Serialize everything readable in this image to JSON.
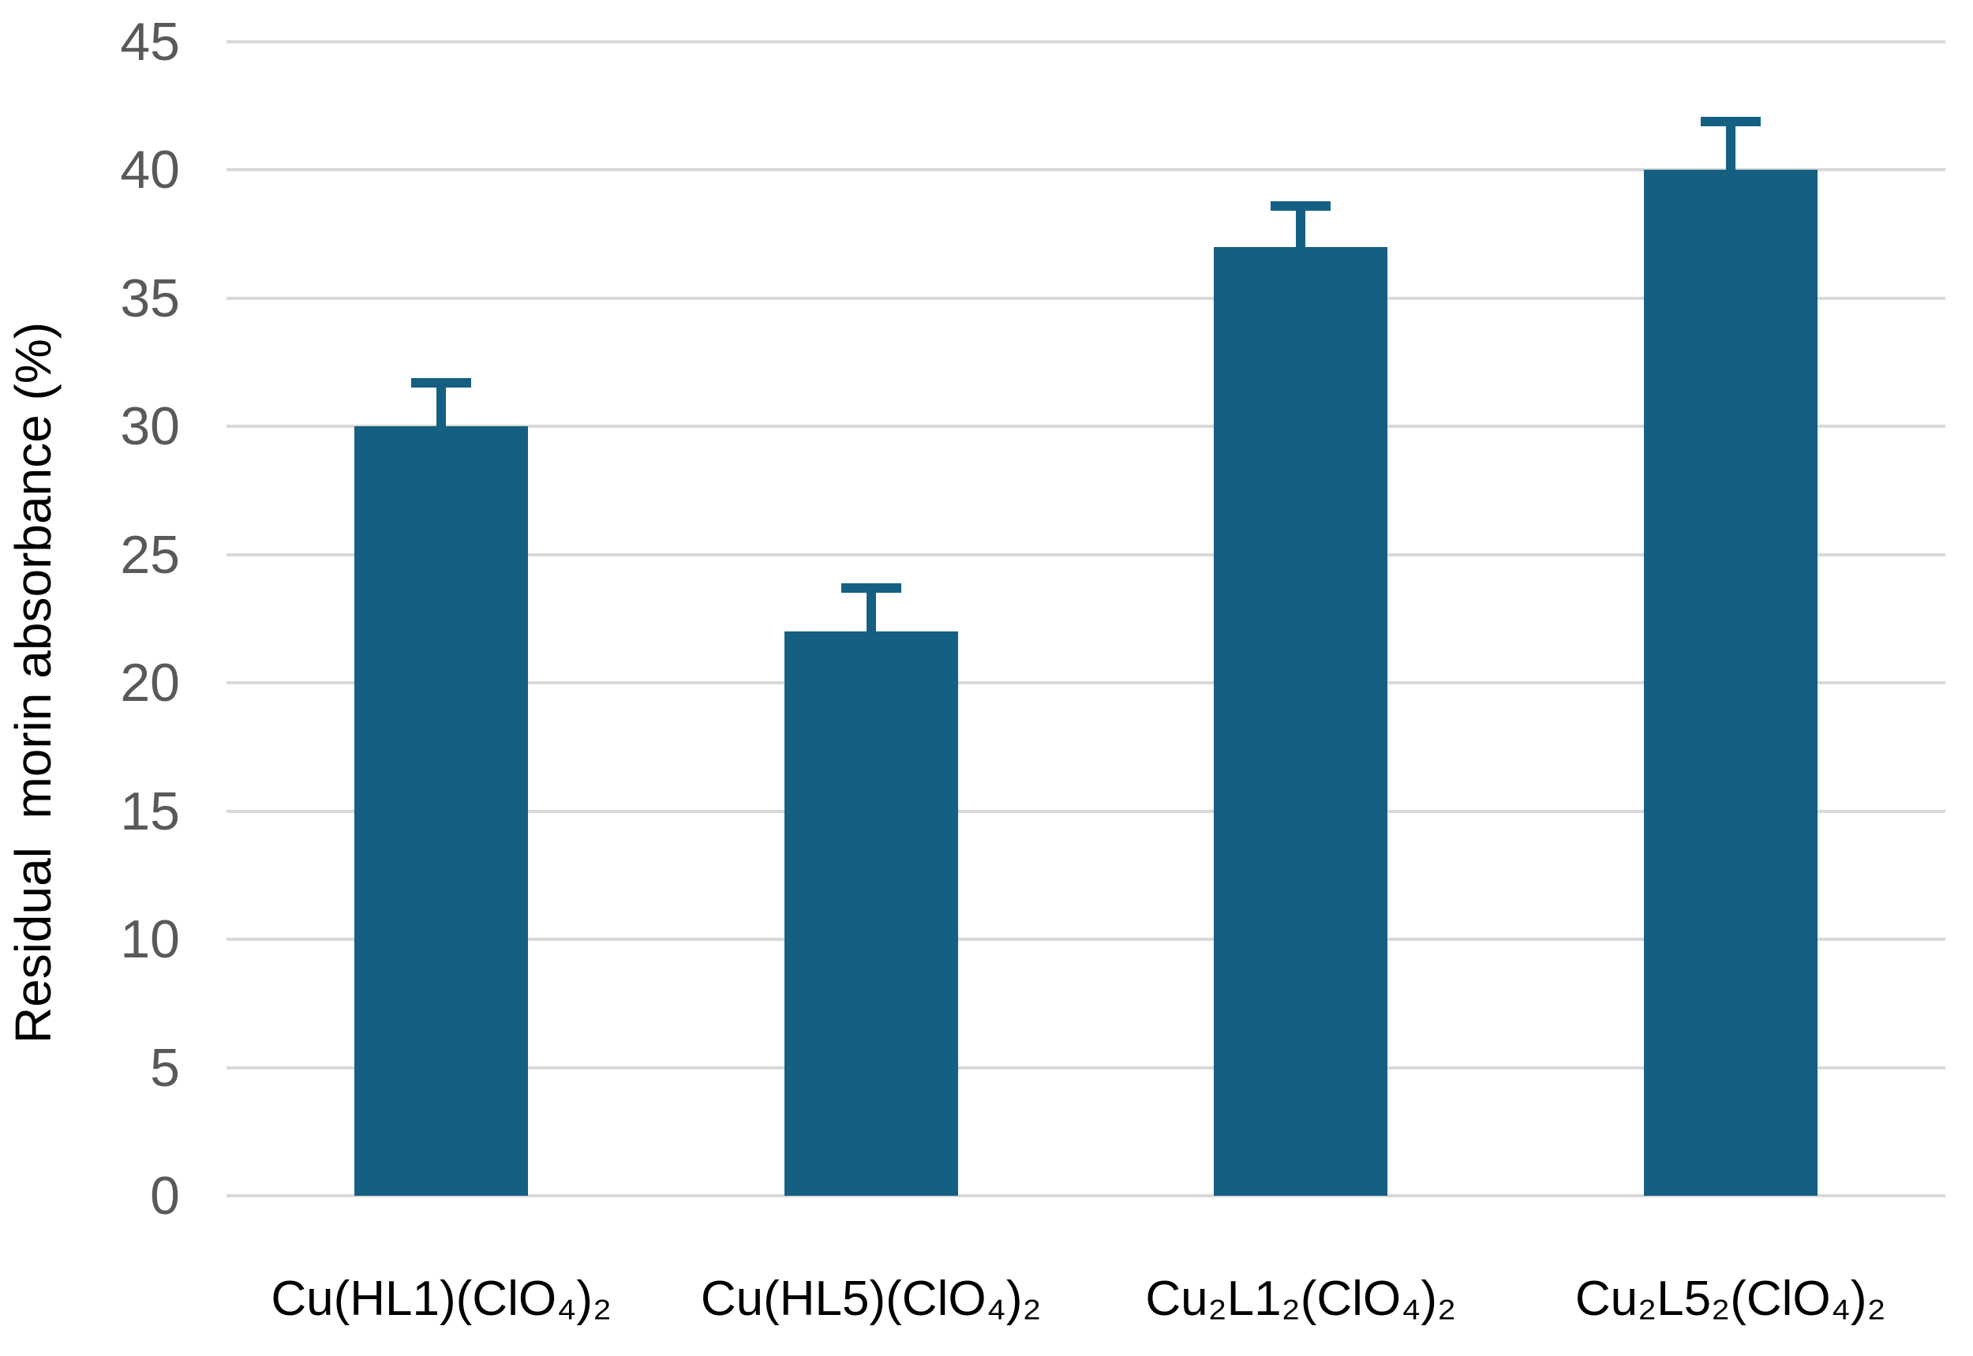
{
  "chart_data": {
    "type": "bar",
    "title": "",
    "xlabel": "",
    "ylabel": "Residual  morin absorbance (%)",
    "categories": [
      "Cu(HL1)(ClO₄)₂",
      "Cu(HL5)(ClO₄)₂",
      "Cu₂L1₂(ClO₄)₂",
      "Cu₂L5₂(ClO₄)₂"
    ],
    "values": [
      30,
      22,
      37,
      40
    ],
    "error_plus": [
      1.7,
      1.7,
      1.6,
      1.9
    ],
    "ylim": [
      0,
      45
    ],
    "yticks": [
      0,
      5,
      10,
      15,
      20,
      25,
      30,
      35,
      40,
      45
    ],
    "grid": "horizontal",
    "legend": "none",
    "colors": {
      "bar": "#156082",
      "error_bar": "#156082",
      "gridline": "#D9D9D9",
      "tick_label": "#595959",
      "category_label": "#000000",
      "axis_title": "#000000",
      "background": "#FFFFFF"
    }
  }
}
